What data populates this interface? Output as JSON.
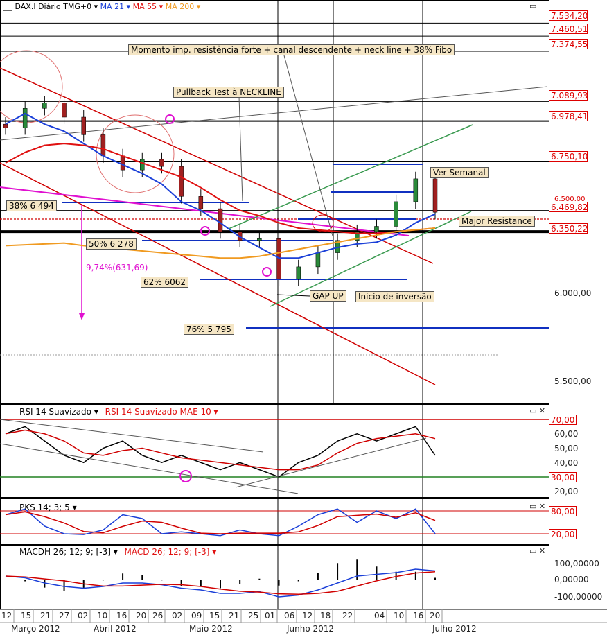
{
  "header": {
    "symbol": "DAX.I Diário TMG+0",
    "ma21": "MA 21",
    "ma55": "MA 55",
    "ma200": "MA 200"
  },
  "colors": {
    "ma21": "#1a3fd8",
    "ma55": "#e01010",
    "ma200": "#f09a20",
    "fibo": "#1030c0",
    "magenta": "#e010d0",
    "green": "#3a9a50",
    "price_red": "#d00000"
  },
  "annotations": {
    "momento": "Momento imp. resistência forte + canal descendente + neck line + 38% Fibo",
    "pullback": "Pullback Test à NECKLINE",
    "ver_semanal": "Ver Semanal",
    "major_resistance": "Major Resistance",
    "gap_up": "GAP UP",
    "inicio": "Inicio de inversão",
    "pct": "9,74%(631,69)"
  },
  "fibo": {
    "f38": "38%  6 494",
    "f50": "50%  6 278",
    "f62": "62%  6062",
    "f76": "76% 5 795"
  },
  "price_axis": {
    "boxes": [
      "7.534,20",
      "7.460,51",
      "7.374,55",
      "7.089,93",
      "6.978,41",
      "6.750,10",
      "6.469,82",
      "6.350,22"
    ],
    "partial": "6.500,00",
    "plain": [
      "6.000,00",
      "5.500,00"
    ]
  },
  "rsi_panel": {
    "title1": "RSI 14 Suavizado",
    "title2": "RSI 14 Suavizado MAE 10",
    "boxes": [
      "70,00",
      "30,00"
    ],
    "ticks": [
      "60,00",
      "50,00",
      "40,00",
      "20,00"
    ]
  },
  "pks_panel": {
    "title": "PKS 14; 3; 5",
    "boxes": [
      "80,00",
      "20,00"
    ]
  },
  "macd_panel": {
    "title1": "MACDH 26; 12; 9; [-3]",
    "title2": "MACD 26; 12; 9; [-3]",
    "ticks": [
      "100,00000",
      "0,00000",
      "-100,00000"
    ]
  },
  "x_axis": {
    "days": [
      "12",
      "15",
      "21",
      "27",
      "02",
      "10",
      "16",
      "20",
      "26",
      "02",
      "09",
      "15",
      "21",
      "25",
      "01",
      "06",
      "12",
      "18",
      "22",
      "04",
      "10",
      "16",
      "20"
    ],
    "months": [
      "Março 2012",
      "Abril 2012",
      "Maio 2012",
      "Junho 2012",
      "Julho 2012"
    ]
  },
  "chart_data": {
    "type": "candlestick",
    "title": "DAX.I Diário TMG+0",
    "y_range": [
      5300,
      7600
    ],
    "x": [
      "12 Mar",
      "15",
      "21",
      "27",
      "02 Abr",
      "10",
      "16",
      "20",
      "26",
      "02 Mai",
      "09",
      "15",
      "21",
      "25",
      "01 Jun",
      "06",
      "12",
      "18",
      "22",
      "04 Jul",
      "10",
      "16",
      "20"
    ],
    "close": [
      6940,
      7050,
      7080,
      7000,
      6900,
      6780,
      6700,
      6760,
      6720,
      6550,
      6480,
      6350,
      6300,
      6310,
      6080,
      6150,
      6230,
      6300,
      6350,
      6380,
      6520,
      6650,
      6460
    ],
    "series": [
      {
        "name": "MA 21",
        "values": [
          6960,
          7020,
          6960,
          6920,
          6850,
          6780,
          6730,
          6680,
          6620,
          6520,
          6470,
          6400,
          6320,
          6260,
          6200,
          6200,
          6230,
          6260,
          6280,
          6290,
          6330,
          6400,
          6450
        ]
      },
      {
        "name": "MA 55",
        "values": [
          6740,
          6800,
          6840,
          6850,
          6840,
          6820,
          6780,
          6740,
          6700,
          6660,
          6600,
          6530,
          6470,
          6440,
          6400,
          6370,
          6360,
          6350,
          6340,
          6340,
          6350,
          6360,
          6370
        ]
      },
      {
        "name": "MA 200",
        "values": [
          6270,
          6275,
          6280,
          6285,
          6270,
          6260,
          6250,
          6240,
          6230,
          6220,
          6210,
          6200,
          6200,
          6210,
          6230,
          6250,
          6270,
          6290,
          6310,
          6330,
          6350,
          6360,
          6370
        ]
      }
    ],
    "fibonacci": [
      {
        "level": "38%",
        "value": 6494
      },
      {
        "level": "50%",
        "value": 6278
      },
      {
        "level": "62%",
        "value": 6062
      },
      {
        "level": "76%",
        "value": 5795
      }
    ],
    "rsi": {
      "ylim": [
        10,
        75
      ],
      "levels": [
        70,
        30
      ]
    },
    "pks": {
      "levels": [
        80,
        20
      ]
    },
    "macd": {
      "ticks": [
        100,
        0,
        -100
      ]
    }
  }
}
